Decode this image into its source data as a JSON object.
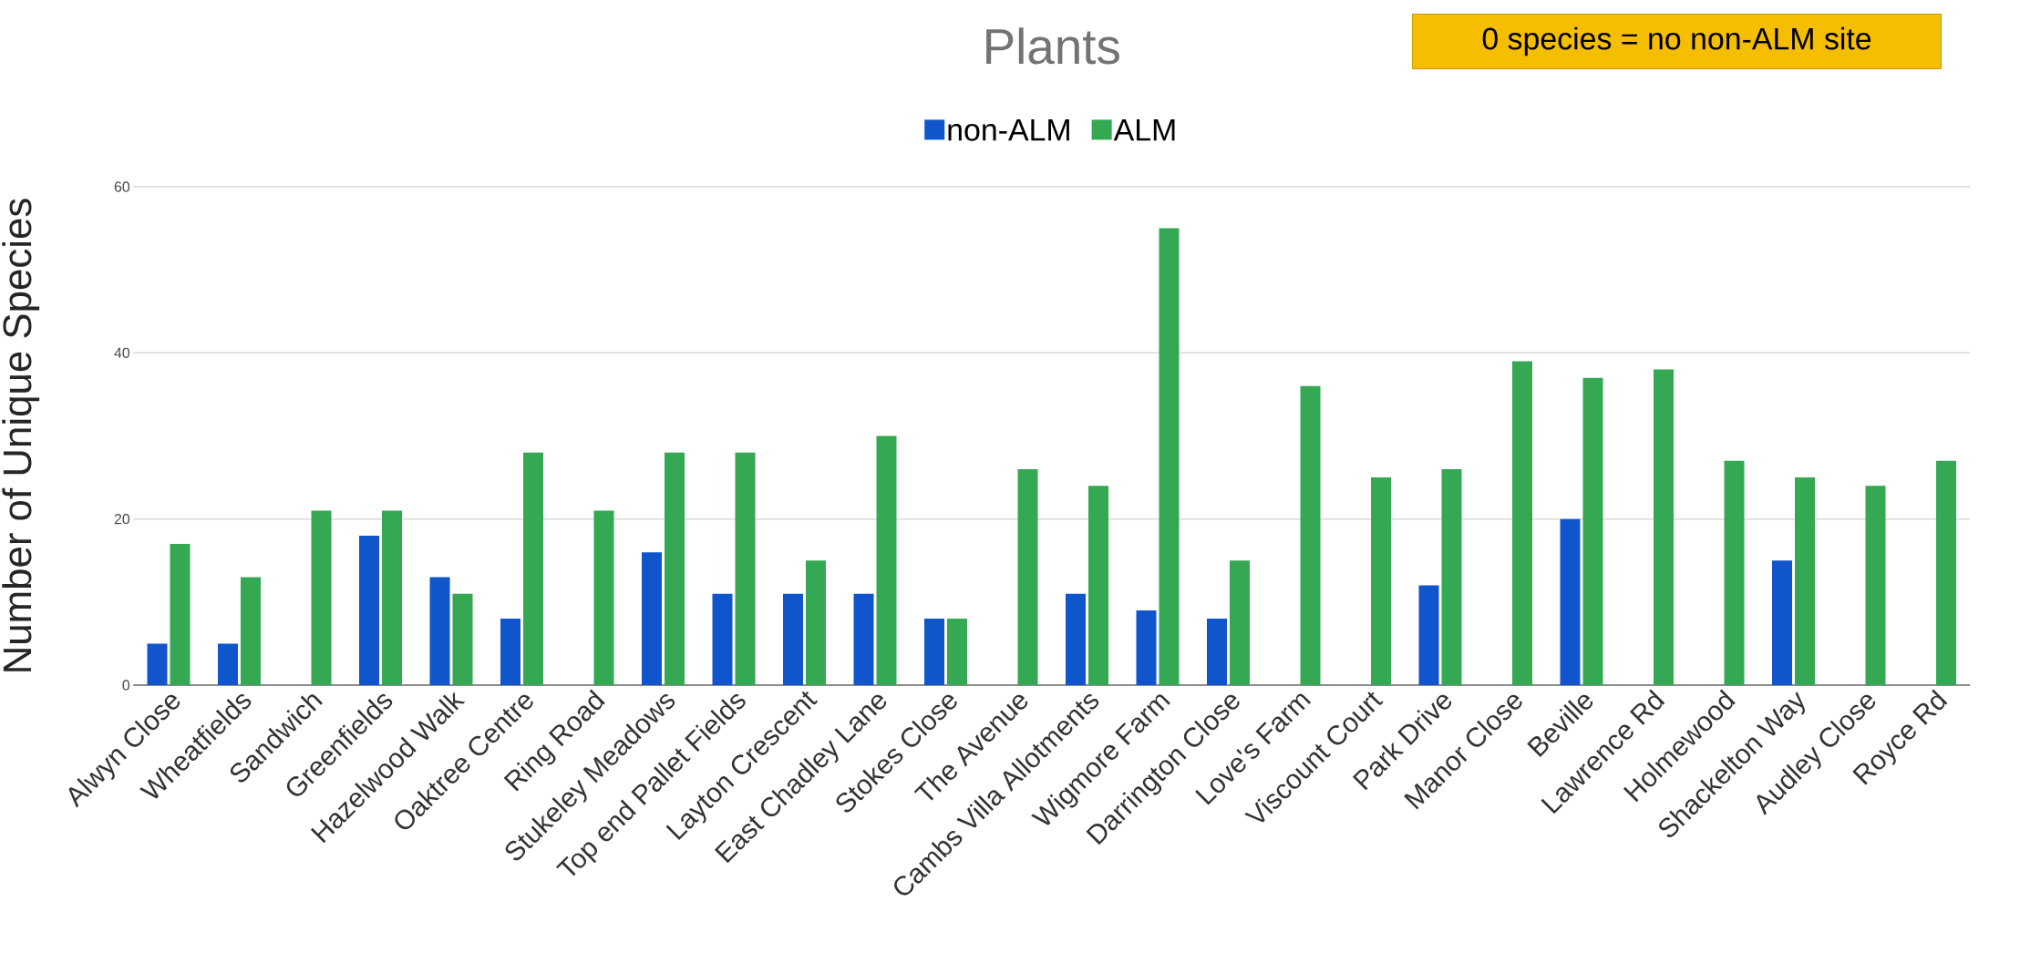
{
  "chart_data": {
    "type": "bar",
    "title": "Plants",
    "ylabel": "Number of Unique Species",
    "categories": [
      "Alwyn Close",
      "Wheatfields",
      "Sandwich",
      "Greenfields",
      "Hazelwood Walk",
      "Oaktree Centre",
      "Ring Road",
      "Stukeley Meadows",
      "Top end Pallet Fields",
      "Layton Crescent",
      "East Chadley Lane",
      "Stokes Close",
      "The Avenue",
      "Cambs Villa Allotments",
      "Wigmore Farm",
      "Darrington Close",
      "Love's Farm",
      "Viscount Court",
      "Park Drive",
      "Manor Close",
      "Beville",
      "Lawrence Rd",
      "Holmewood",
      "Shackelton Way",
      "Audley Close",
      "Royce Rd"
    ],
    "series": [
      {
        "name": "non-ALM",
        "color": "#1155cc",
        "values": [
          5,
          5,
          0,
          18,
          13,
          8,
          0,
          16,
          11,
          11,
          11,
          8,
          0,
          11,
          9,
          8,
          0,
          0,
          12,
          0,
          20,
          0,
          0,
          15,
          0,
          0
        ]
      },
      {
        "name": "ALM",
        "color": "#34a853",
        "values": [
          17,
          13,
          21,
          21,
          11,
          28,
          21,
          28,
          28,
          15,
          30,
          8,
          26,
          24,
          55,
          15,
          36,
          25,
          26,
          39,
          37,
          38,
          27,
          25,
          24,
          27
        ]
      }
    ],
    "ylim": [
      0,
      60
    ],
    "yticks": [
      0,
      20,
      40,
      60
    ],
    "grid": "y",
    "legend": "top",
    "annotations": [
      "0 species = no non-ALM site"
    ]
  }
}
